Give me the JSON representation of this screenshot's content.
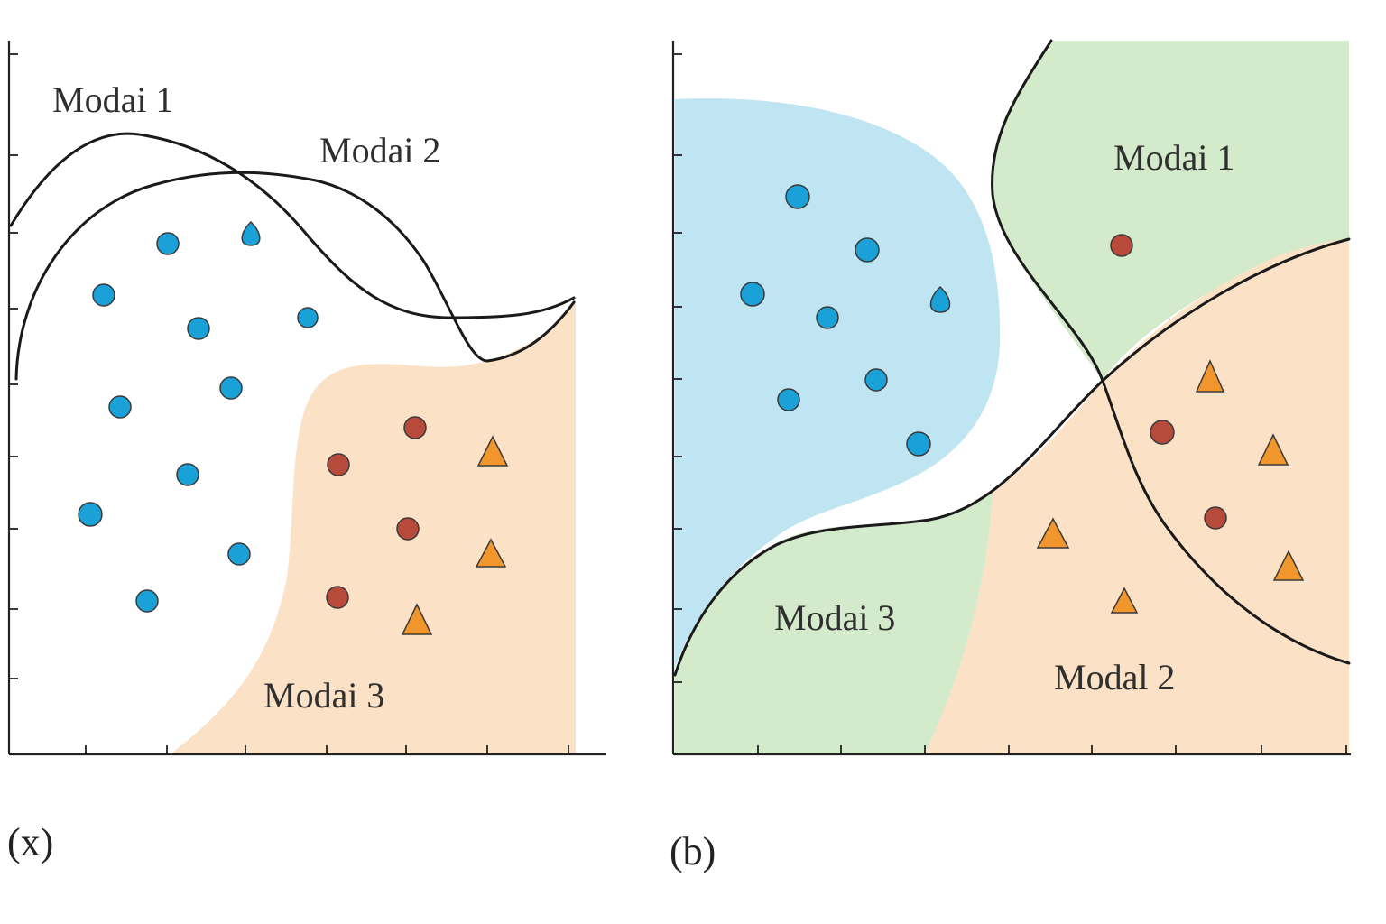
{
  "colors": {
    "blue_point": "#1aa2d8",
    "red_point": "#b84a3c",
    "orange_triangle": "#f0962c",
    "peach_region": "#fbe1c6",
    "blue_region": "#bfe4f2",
    "green_region": "#d3eacb",
    "boundary": "#1a1a1a",
    "axis": "#222222"
  },
  "panels": [
    {
      "id": "a",
      "caption": "(x)",
      "labels": {
        "modal1": "Modai 1",
        "modal2": "Modai 2",
        "modal3": "Modai 3"
      }
    },
    {
      "id": "b",
      "caption": "(b)",
      "labels": {
        "modal1": "Modai 1",
        "modal2": "Modal 2",
        "modal3": "Modai 3"
      }
    }
  ],
  "icons": {
    "blue_point": "circle",
    "red_point": "circle",
    "orange_point": "triangle"
  }
}
